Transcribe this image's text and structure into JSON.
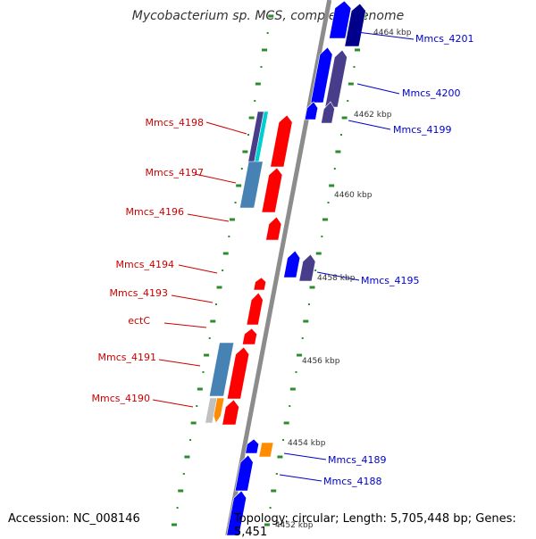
{
  "title": "Mycobacterium sp. MCS, complete genome",
  "accession": "Accession: NC_008146",
  "topology": "Topology: circular; Length: 5,705,448 bp; Genes: 5,451",
  "colors": {
    "backbone": "#8c8c8c",
    "tick": "#2e8b2e",
    "left_label": "#cc0000",
    "right_label": "#0000cc",
    "gene_red": "#ff0000",
    "gene_blue": "#0000ff",
    "gene_navy": "#00008b",
    "gene_slate": "#483d8b",
    "gene_steel": "#4682b4",
    "gene_orange": "#ff8c00",
    "gene_grey": "#c0c0c0",
    "gene_cyan": "#00ced1"
  },
  "scale_labels": [
    "4464 kbp",
    "4462 kbp",
    "4460 kbp",
    "4458 kbp",
    "4456 kbp",
    "4454 kbp",
    "4452 kbp"
  ],
  "left_genes": [
    "Mmcs_4198",
    "Mmcs_4197",
    "Mmcs_4196",
    "Mmcs_4194",
    "Mmcs_4193",
    "ectC",
    "Mmcs_4191",
    "Mmcs_4190"
  ],
  "right_genes": [
    "Mmcs_4201",
    "Mmcs_4200",
    "Mmcs_4199",
    "Mmcs_4195",
    "Mmcs_4189",
    "Mmcs_4188"
  ]
}
